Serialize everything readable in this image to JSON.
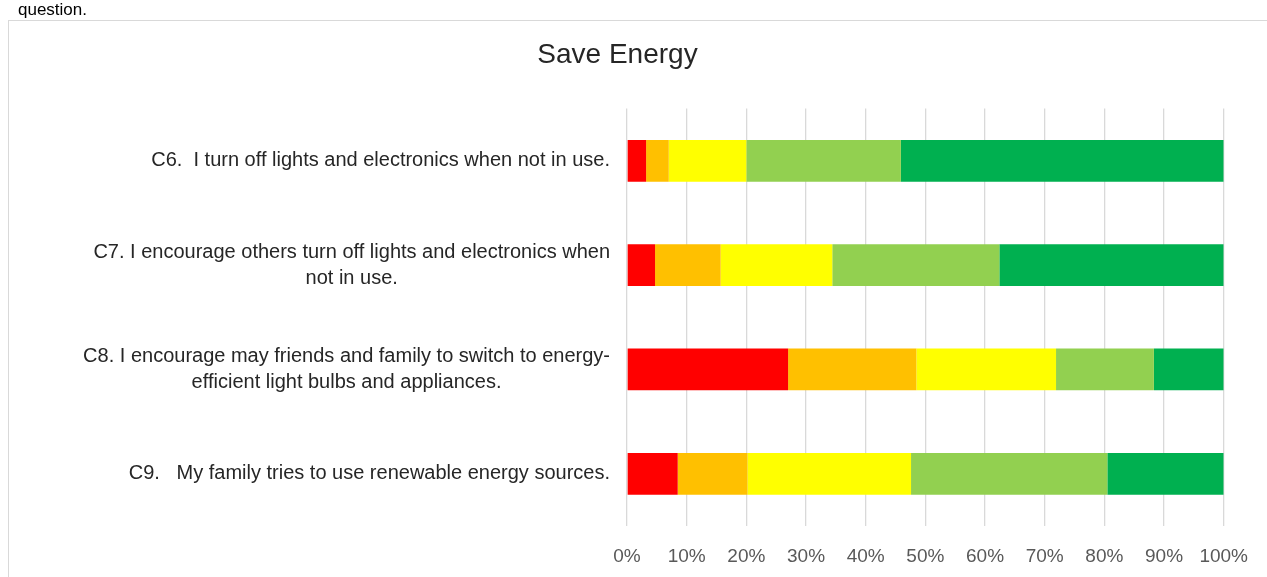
{
  "chart_data": {
    "type": "bar",
    "orientation": "horizontal",
    "stacked": true,
    "title": "Save Energy",
    "categories": [
      "C6.  I turn off lights and electronics when not in use.",
      "C7. I encourage others turn off lights and electronics when not in use.",
      "C8. I encourage may friends and family to switch to energy-efficient light bulbs and appliances.",
      "C9.   My family tries to use renewable energy sources."
    ],
    "series": [
      {
        "color": "#ff0000",
        "values": [
          3.2,
          4.7,
          27.0,
          8.5
        ]
      },
      {
        "color": "#ffc000",
        "values": [
          3.8,
          11.0,
          21.5,
          11.7
        ]
      },
      {
        "color": "#ffff00",
        "values": [
          13.0,
          18.7,
          23.4,
          27.4
        ]
      },
      {
        "color": "#92d050",
        "values": [
          25.9,
          28.0,
          16.4,
          32.9
        ]
      },
      {
        "color": "#00b050",
        "values": [
          54.1,
          37.6,
          11.7,
          19.5
        ]
      }
    ],
    "xlim": [
      0,
      100
    ],
    "xticks": [
      {
        "value": 0,
        "label": "0%"
      },
      {
        "value": 10,
        "label": "10%"
      },
      {
        "value": 20,
        "label": "20%"
      },
      {
        "value": 30,
        "label": "30%"
      },
      {
        "value": 40,
        "label": "40%"
      },
      {
        "value": 50,
        "label": "50%"
      },
      {
        "value": 60,
        "label": "60%"
      },
      {
        "value": 70,
        "label": "70%"
      },
      {
        "value": 80,
        "label": "80%"
      },
      {
        "value": 90,
        "label": "90%"
      },
      {
        "value": 100,
        "label": "100%"
      }
    ],
    "grid": "x",
    "annotations": [
      "question."
    ]
  }
}
